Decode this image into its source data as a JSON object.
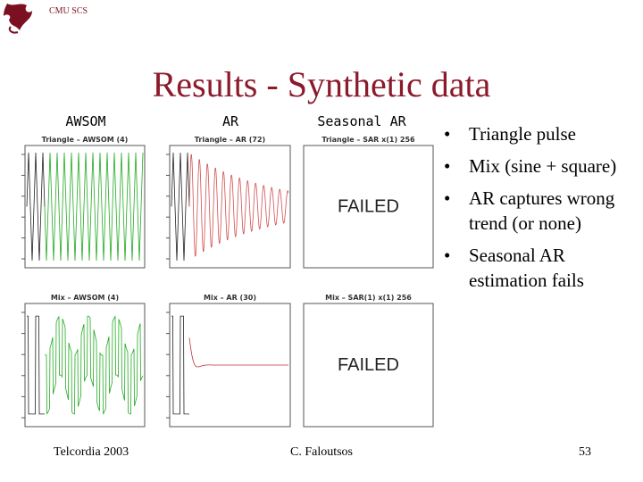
{
  "header": {
    "logo_text": "CMU SCS"
  },
  "title": "Results - Synthetic data",
  "columns": [
    "AWSOM",
    "AR",
    "Seasonal AR"
  ],
  "panels": [
    {
      "title": "Triangle – AWSOM (4)"
    },
    {
      "title": "Triangle – AR (72)"
    },
    {
      "title": "Triangle – SAR x(1) 256",
      "status": "FAILED"
    },
    {
      "title": "Mix – AWSOM (4)"
    },
    {
      "title": "Mix – AR (30)"
    },
    {
      "title": "Mix – SAR(1) x(1) 256",
      "status": "FAILED"
    }
  ],
  "bullets": [
    "Triangle pulse",
    "Mix (sine + square)",
    "AR captures wrong trend (or none)",
    "Seasonal AR estimation fails"
  ],
  "footer": {
    "left": "Telcordia 2003",
    "center": "C. Faloutsos",
    "right": "53"
  }
}
